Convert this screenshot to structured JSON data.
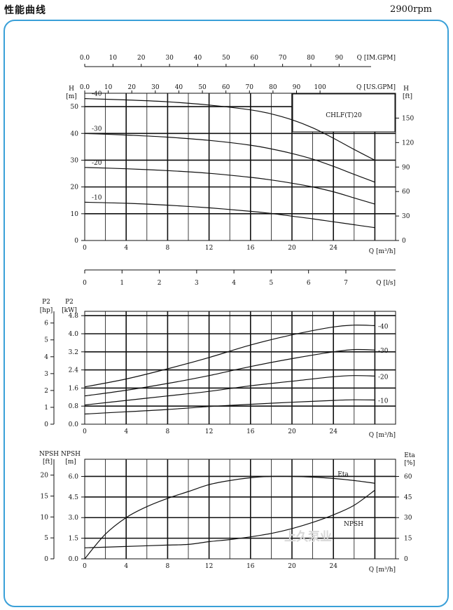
{
  "header": {
    "title": "性能曲线",
    "speed": "2900rpm"
  },
  "watermark": "上久泵业",
  "chart_data": [
    {
      "type": "line",
      "title": "CHLF(T)20",
      "xlabel": "Q [m³/h]",
      "xticks": [
        0,
        4,
        8,
        12,
        16,
        20,
        24
      ],
      "xlim": [
        0,
        30
      ],
      "ylabel_left": "H [m]",
      "ylabel_right": "H [ft]",
      "ylim": [
        0,
        55
      ],
      "yticks_left": [
        0,
        10,
        20,
        30,
        40,
        50
      ],
      "yticks_right": [
        0,
        30,
        60,
        90,
        120,
        150
      ],
      "extra_axes": [
        {
          "label": "Q [IM.GPM]",
          "ticks": [
            0,
            10,
            20,
            30,
            40,
            50,
            60,
            70,
            80,
            90
          ]
        },
        {
          "label": "Q [US.GPM]",
          "ticks": [
            0,
            10,
            20,
            30,
            40,
            50,
            60,
            70,
            80,
            90,
            100
          ]
        },
        {
          "label": "Q [l/s]",
          "ticks": [
            0,
            1,
            2,
            3,
            4,
            5,
            6,
            7
          ]
        }
      ],
      "series": [
        {
          "name": "-40",
          "x": [
            0,
            4,
            8,
            12,
            16,
            18,
            20,
            22,
            24,
            26,
            28
          ],
          "values": [
            53,
            52.5,
            51.8,
            50.6,
            48.8,
            47.3,
            45.1,
            42.1,
            38.2,
            34.0,
            30.0
          ]
        },
        {
          "name": "-30",
          "x": [
            0,
            4,
            8,
            12,
            16,
            18,
            20,
            22,
            24,
            26,
            28
          ],
          "values": [
            40,
            39.4,
            38.6,
            37.4,
            35.6,
            34.2,
            32.5,
            30.4,
            27.7,
            24.7,
            21.8
          ]
        },
        {
          "name": "-20",
          "x": [
            0,
            4,
            8,
            12,
            16,
            18,
            20,
            22,
            24,
            26,
            28
          ],
          "values": [
            27.3,
            26.8,
            26.1,
            25.1,
            23.6,
            22.6,
            21.4,
            20.0,
            18.2,
            15.9,
            13.6
          ]
        },
        {
          "name": "-10",
          "x": [
            0,
            4,
            8,
            12,
            16,
            18,
            20,
            22,
            24,
            26,
            28
          ],
          "values": [
            14.3,
            13.9,
            13.2,
            12.2,
            10.9,
            10.1,
            9.1,
            8.1,
            7.0,
            5.9,
            4.8
          ]
        }
      ]
    },
    {
      "type": "line",
      "xlabel": "Q [m³/h]",
      "xticks": [
        0,
        4,
        8,
        12,
        16,
        20,
        24
      ],
      "xlim": [
        0,
        30
      ],
      "ylabel_left_hp": "P2 [hp]",
      "ylabel_left_kw": "P2 [kW]",
      "ylim": [
        0,
        4.8
      ],
      "yticks_kw": [
        "0.0",
        "0.8",
        "1.6",
        "2.4",
        "3.2",
        "4.0",
        "4.8"
      ],
      "yticks_hp": [
        "0",
        "1",
        "2",
        "3",
        "4",
        "5",
        "6"
      ],
      "series": [
        {
          "name": "-40",
          "x": [
            0,
            4,
            8,
            12,
            16,
            20,
            24,
            26,
            28
          ],
          "values": [
            1.65,
            2.0,
            2.45,
            2.95,
            3.5,
            3.95,
            4.3,
            4.38,
            4.36
          ]
        },
        {
          "name": "-30",
          "x": [
            0,
            4,
            8,
            12,
            16,
            20,
            24,
            26,
            28
          ],
          "values": [
            1.25,
            1.5,
            1.8,
            2.15,
            2.55,
            2.9,
            3.2,
            3.3,
            3.28
          ]
        },
        {
          "name": "-20",
          "x": [
            0,
            4,
            8,
            12,
            16,
            20,
            24,
            26,
            28
          ],
          "values": [
            0.85,
            1.05,
            1.25,
            1.45,
            1.7,
            1.9,
            2.1,
            2.15,
            2.13
          ]
        },
        {
          "name": "-10",
          "x": [
            0,
            4,
            8,
            12,
            16,
            20,
            24,
            26,
            28
          ],
          "values": [
            0.45,
            0.55,
            0.65,
            0.78,
            0.88,
            0.97,
            1.05,
            1.08,
            1.07
          ]
        }
      ]
    },
    {
      "type": "line",
      "xlabel": "Q [m³/h]",
      "xticks": [
        0,
        4,
        8,
        12,
        16,
        20,
        24
      ],
      "xlim": [
        0,
        30
      ],
      "ylabel_npsh_ft": "NPSH [ft]",
      "ylabel_npsh_m": "NPSH [m]",
      "ylabel_right": "Eta [%]",
      "ylim": [
        0,
        7.5
      ],
      "yticks_m": [
        "0.0",
        "1.5",
        "3.0",
        "4.5",
        "6.0"
      ],
      "yticks_ft": [
        "0",
        "5",
        "10",
        "15",
        "20"
      ],
      "yticks_eta": [
        "0",
        "15",
        "30",
        "45",
        "60"
      ],
      "series": [
        {
          "name": "Eta",
          "axis": "eta",
          "x": [
            0,
            2,
            4,
            6,
            8,
            10,
            12,
            14,
            16,
            18,
            20,
            22,
            24,
            26,
            28
          ],
          "values": [
            0,
            18,
            30,
            38,
            44,
            49,
            54,
            57,
            59,
            60,
            60,
            59.5,
            58.5,
            57,
            55
          ]
        },
        {
          "name": "NPSH",
          "axis": "npsh",
          "x": [
            0,
            4,
            8,
            10,
            12,
            14,
            16,
            18,
            20,
            22,
            24,
            26,
            28
          ],
          "values": [
            0.8,
            0.9,
            1.0,
            1.05,
            1.25,
            1.4,
            1.6,
            1.85,
            2.2,
            2.65,
            3.2,
            3.9,
            5.0
          ]
        }
      ]
    }
  ]
}
